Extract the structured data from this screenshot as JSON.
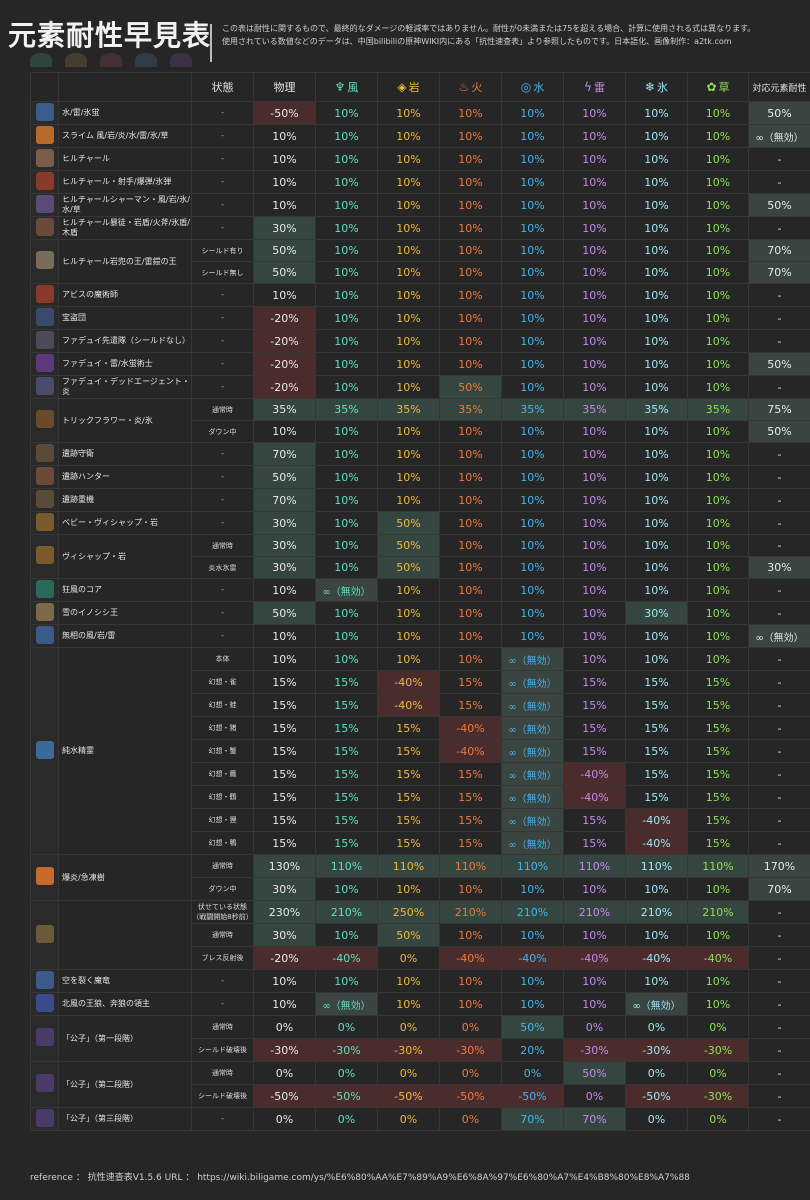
{
  "title": "元素耐性早見表",
  "notes": [
    "この表は耐性に関するもので、最終的なダメージの軽減率ではありません。耐性が0未満または75を超える場合、計算に使用される式は異なります。",
    "使用されている数値などのデータは、中国bilibiliの原神WIKI内にある「抗性速查表」より参照したものです。日本語化、画像制作：a2tk.com"
  ],
  "headers": {
    "state": "状態",
    "phys": "物理",
    "anemo": "風",
    "geo": "岩",
    "pyro": "火",
    "hydro": "水",
    "electro": "雷",
    "cryo": "氷",
    "dendro": "草",
    "res": "対応元素耐性"
  },
  "rows": [
    {
      "name": "水/雷/氷蛍",
      "state": "-",
      "v": [
        "-50%",
        "10%",
        "10%",
        "10%",
        "10%",
        "10%",
        "10%",
        "10%",
        "50%"
      ]
    },
    {
      "name": "スライム 風/岩/炎/水/雷/氷/草",
      "state": "-",
      "v": [
        "10%",
        "10%",
        "10%",
        "10%",
        "10%",
        "10%",
        "10%",
        "10%",
        "∞（無効）"
      ]
    },
    {
      "name": "ヒルチャール",
      "state": "-",
      "v": [
        "10%",
        "10%",
        "10%",
        "10%",
        "10%",
        "10%",
        "10%",
        "10%",
        "-"
      ]
    },
    {
      "name": "ヒルチャール・射手/爆弾/氷弾",
      "state": "-",
      "v": [
        "10%",
        "10%",
        "10%",
        "10%",
        "10%",
        "10%",
        "10%",
        "10%",
        "-"
      ]
    },
    {
      "name": "ヒルチャールシャーマン・風/岩/氷/水/草",
      "state": "-",
      "v": [
        "10%",
        "10%",
        "10%",
        "10%",
        "10%",
        "10%",
        "10%",
        "10%",
        "50%"
      ]
    },
    {
      "name": "ヒルチャール暴徒・岩盾/火斧/氷盾/木盾",
      "state": "-",
      "v": [
        "30%",
        "10%",
        "10%",
        "10%",
        "10%",
        "10%",
        "10%",
        "10%",
        "-"
      ]
    },
    {
      "name": "ヒルチャール岩兜の王/雷鎧の王",
      "state": "シールド有り",
      "v": [
        "50%",
        "10%",
        "10%",
        "10%",
        "10%",
        "10%",
        "10%",
        "10%",
        "70%"
      ]
    },
    {
      "name": "",
      "state": "シールド無し",
      "v": [
        "50%",
        "10%",
        "10%",
        "10%",
        "10%",
        "10%",
        "10%",
        "10%",
        "70%"
      ]
    },
    {
      "name": "アビスの魔術師",
      "state": "-",
      "v": [
        "10%",
        "10%",
        "10%",
        "10%",
        "10%",
        "10%",
        "10%",
        "10%",
        "-"
      ]
    },
    {
      "name": "宝盗団",
      "state": "-",
      "v": [
        "-20%",
        "10%",
        "10%",
        "10%",
        "10%",
        "10%",
        "10%",
        "10%",
        "-"
      ]
    },
    {
      "name": "ファデュイ先遣隊（シールドなし）",
      "state": "-",
      "v": [
        "-20%",
        "10%",
        "10%",
        "10%",
        "10%",
        "10%",
        "10%",
        "10%",
        "-"
      ]
    },
    {
      "name": "ファデュイ・雷/水蛍術士",
      "state": "-",
      "v": [
        "-20%",
        "10%",
        "10%",
        "10%",
        "10%",
        "10%",
        "10%",
        "10%",
        "50%"
      ]
    },
    {
      "name": "ファデュイ・デッドエージェント・炎",
      "state": "-",
      "v": [
        "-20%",
        "10%",
        "10%",
        "50%",
        "10%",
        "10%",
        "10%",
        "10%",
        "-"
      ]
    },
    {
      "name": "トリックフラワー・炎/氷",
      "state": "通常時",
      "v": [
        "35%",
        "35%",
        "35%",
        "35%",
        "35%",
        "35%",
        "35%",
        "35%",
        "75%"
      ]
    },
    {
      "name": "",
      "state": "ダウン中",
      "v": [
        "10%",
        "10%",
        "10%",
        "10%",
        "10%",
        "10%",
        "10%",
        "10%",
        "50%"
      ]
    },
    {
      "name": "遺跡守衛",
      "state": "-",
      "v": [
        "70%",
        "10%",
        "10%",
        "10%",
        "10%",
        "10%",
        "10%",
        "10%",
        "-"
      ]
    },
    {
      "name": "遺跡ハンター",
      "state": "-",
      "v": [
        "50%",
        "10%",
        "10%",
        "10%",
        "10%",
        "10%",
        "10%",
        "10%",
        "-"
      ]
    },
    {
      "name": "遺跡重機",
      "state": "-",
      "v": [
        "70%",
        "10%",
        "10%",
        "10%",
        "10%",
        "10%",
        "10%",
        "10%",
        "-"
      ]
    },
    {
      "name": "ベビー・ヴィシャップ・岩",
      "state": "-",
      "v": [
        "30%",
        "10%",
        "50%",
        "10%",
        "10%",
        "10%",
        "10%",
        "10%",
        "-"
      ]
    },
    {
      "name": "ヴィシャップ・岩",
      "state": "通常時",
      "v": [
        "30%",
        "10%",
        "50%",
        "10%",
        "10%",
        "10%",
        "10%",
        "10%",
        "-"
      ]
    },
    {
      "name": "",
      "state": "炎水氷雷",
      "v": [
        "30%",
        "10%",
        "50%",
        "10%",
        "10%",
        "10%",
        "10%",
        "10%",
        "30%"
      ]
    },
    {
      "name": "狂風のコア",
      "state": "-",
      "v": [
        "10%",
        "∞（無効）",
        "10%",
        "10%",
        "10%",
        "10%",
        "10%",
        "10%",
        "-"
      ]
    },
    {
      "name": "雪のイノシシ王",
      "state": "-",
      "v": [
        "50%",
        "10%",
        "10%",
        "10%",
        "10%",
        "10%",
        "30%",
        "10%",
        "-"
      ]
    },
    {
      "name": "無相の風/岩/雷",
      "state": "-",
      "v": [
        "10%",
        "10%",
        "10%",
        "10%",
        "10%",
        "10%",
        "10%",
        "10%",
        "∞（無効）"
      ]
    },
    {
      "name": "純水精霊",
      "state": "本体",
      "v": [
        "10%",
        "10%",
        "10%",
        "10%",
        "∞（無効）",
        "10%",
        "10%",
        "10%",
        "-"
      ]
    },
    {
      "name": "",
      "state": "幻想・雀",
      "v": [
        "15%",
        "15%",
        "-40%",
        "15%",
        "∞（無効）",
        "15%",
        "15%",
        "15%",
        "-"
      ]
    },
    {
      "name": "",
      "state": "幻想・蛙",
      "v": [
        "15%",
        "15%",
        "-40%",
        "15%",
        "∞（無効）",
        "15%",
        "15%",
        "15%",
        "-"
      ]
    },
    {
      "name": "",
      "state": "幻想・猪",
      "v": [
        "15%",
        "15%",
        "15%",
        "-40%",
        "∞（無効）",
        "15%",
        "15%",
        "15%",
        "-"
      ]
    },
    {
      "name": "",
      "state": "幻想・蟹",
      "v": [
        "15%",
        "15%",
        "15%",
        "-40%",
        "∞（無効）",
        "15%",
        "15%",
        "15%",
        "-"
      ]
    },
    {
      "name": "",
      "state": "幻想・鷹",
      "v": [
        "15%",
        "15%",
        "15%",
        "15%",
        "∞（無効）",
        "-40%",
        "15%",
        "15%",
        "-"
      ]
    },
    {
      "name": "",
      "state": "幻想・鶴",
      "v": [
        "15%",
        "15%",
        "15%",
        "15%",
        "∞（無効）",
        "-40%",
        "15%",
        "15%",
        "-"
      ]
    },
    {
      "name": "",
      "state": "幻想・狸",
      "v": [
        "15%",
        "15%",
        "15%",
        "15%",
        "∞（無効）",
        "15%",
        "-40%",
        "15%",
        "-"
      ]
    },
    {
      "name": "",
      "state": "幻想・鴨",
      "v": [
        "15%",
        "15%",
        "15%",
        "15%",
        "∞（無効）",
        "15%",
        "-40%",
        "15%",
        "-"
      ]
    },
    {
      "name": "爆炎/急凍樹",
      "state": "通常時",
      "v": [
        "130%",
        "110%",
        "110%",
        "110%",
        "110%",
        "110%",
        "110%",
        "110%",
        "170%"
      ]
    },
    {
      "name": "",
      "state": "ダウン中",
      "v": [
        "30%",
        "10%",
        "10%",
        "10%",
        "10%",
        "10%",
        "10%",
        "10%",
        "70%"
      ]
    },
    {
      "name": "",
      "state": "伏せている状態（戦闘開始8秒前）",
      "v": [
        "230%",
        "210%",
        "250%",
        "210%",
        "210%",
        "210%",
        "210%",
        "210%",
        "-"
      ]
    },
    {
      "name": "エンシェント・ヴィシャップ・岩",
      "state": "通常時",
      "v": [
        "30%",
        "10%",
        "50%",
        "10%",
        "10%",
        "10%",
        "10%",
        "10%",
        "-"
      ]
    },
    {
      "name": "",
      "state": "ブレス反射後",
      "v": [
        "-20%",
        "-40%",
        "0%",
        "-40%",
        "-40%",
        "-40%",
        "-40%",
        "-40%",
        "-"
      ]
    },
    {
      "name": "空を裂く魔竜",
      "state": "-",
      "v": [
        "10%",
        "10%",
        "10%",
        "10%",
        "10%",
        "10%",
        "10%",
        "10%",
        "-"
      ]
    },
    {
      "name": "北風の王狼、奔狼の領主",
      "state": "-",
      "v": [
        "10%",
        "∞（無効）",
        "10%",
        "10%",
        "10%",
        "10%",
        "∞（無効）",
        "10%",
        "-"
      ]
    },
    {
      "name": "「公子」（第一段階）",
      "state": "通常時",
      "v": [
        "0%",
        "0%",
        "0%",
        "0%",
        "50%",
        "0%",
        "0%",
        "0%",
        "-"
      ]
    },
    {
      "name": "",
      "state": "シールド破壊後",
      "v": [
        "-30%",
        "-30%",
        "-30%",
        "-30%",
        "20%",
        "-30%",
        "-30%",
        "-30%",
        "-"
      ]
    },
    {
      "name": "「公子」（第二段階）",
      "state": "通常時",
      "v": [
        "0%",
        "0%",
        "0%",
        "0%",
        "0%",
        "50%",
        "0%",
        "0%",
        "-"
      ]
    },
    {
      "name": "",
      "state": "シールド破壊後",
      "v": [
        "-50%",
        "-50%",
        "-50%",
        "-50%",
        "-50%",
        "0%",
        "-50%",
        "-30%",
        "-"
      ]
    },
    {
      "name": "「公子」（第三段階）",
      "state": "-",
      "v": [
        "0%",
        "0%",
        "0%",
        "0%",
        "70%",
        "70%",
        "0%",
        "0%",
        "-"
      ]
    }
  ],
  "reference": "reference ： 抗性速查表V1.5.6 URL ： https://wiki.biligame.com/ys/%E6%80%AA%E7%89%A9%E6%8A%97%E6%80%A7%E4%B8%80%E8%A7%88"
}
